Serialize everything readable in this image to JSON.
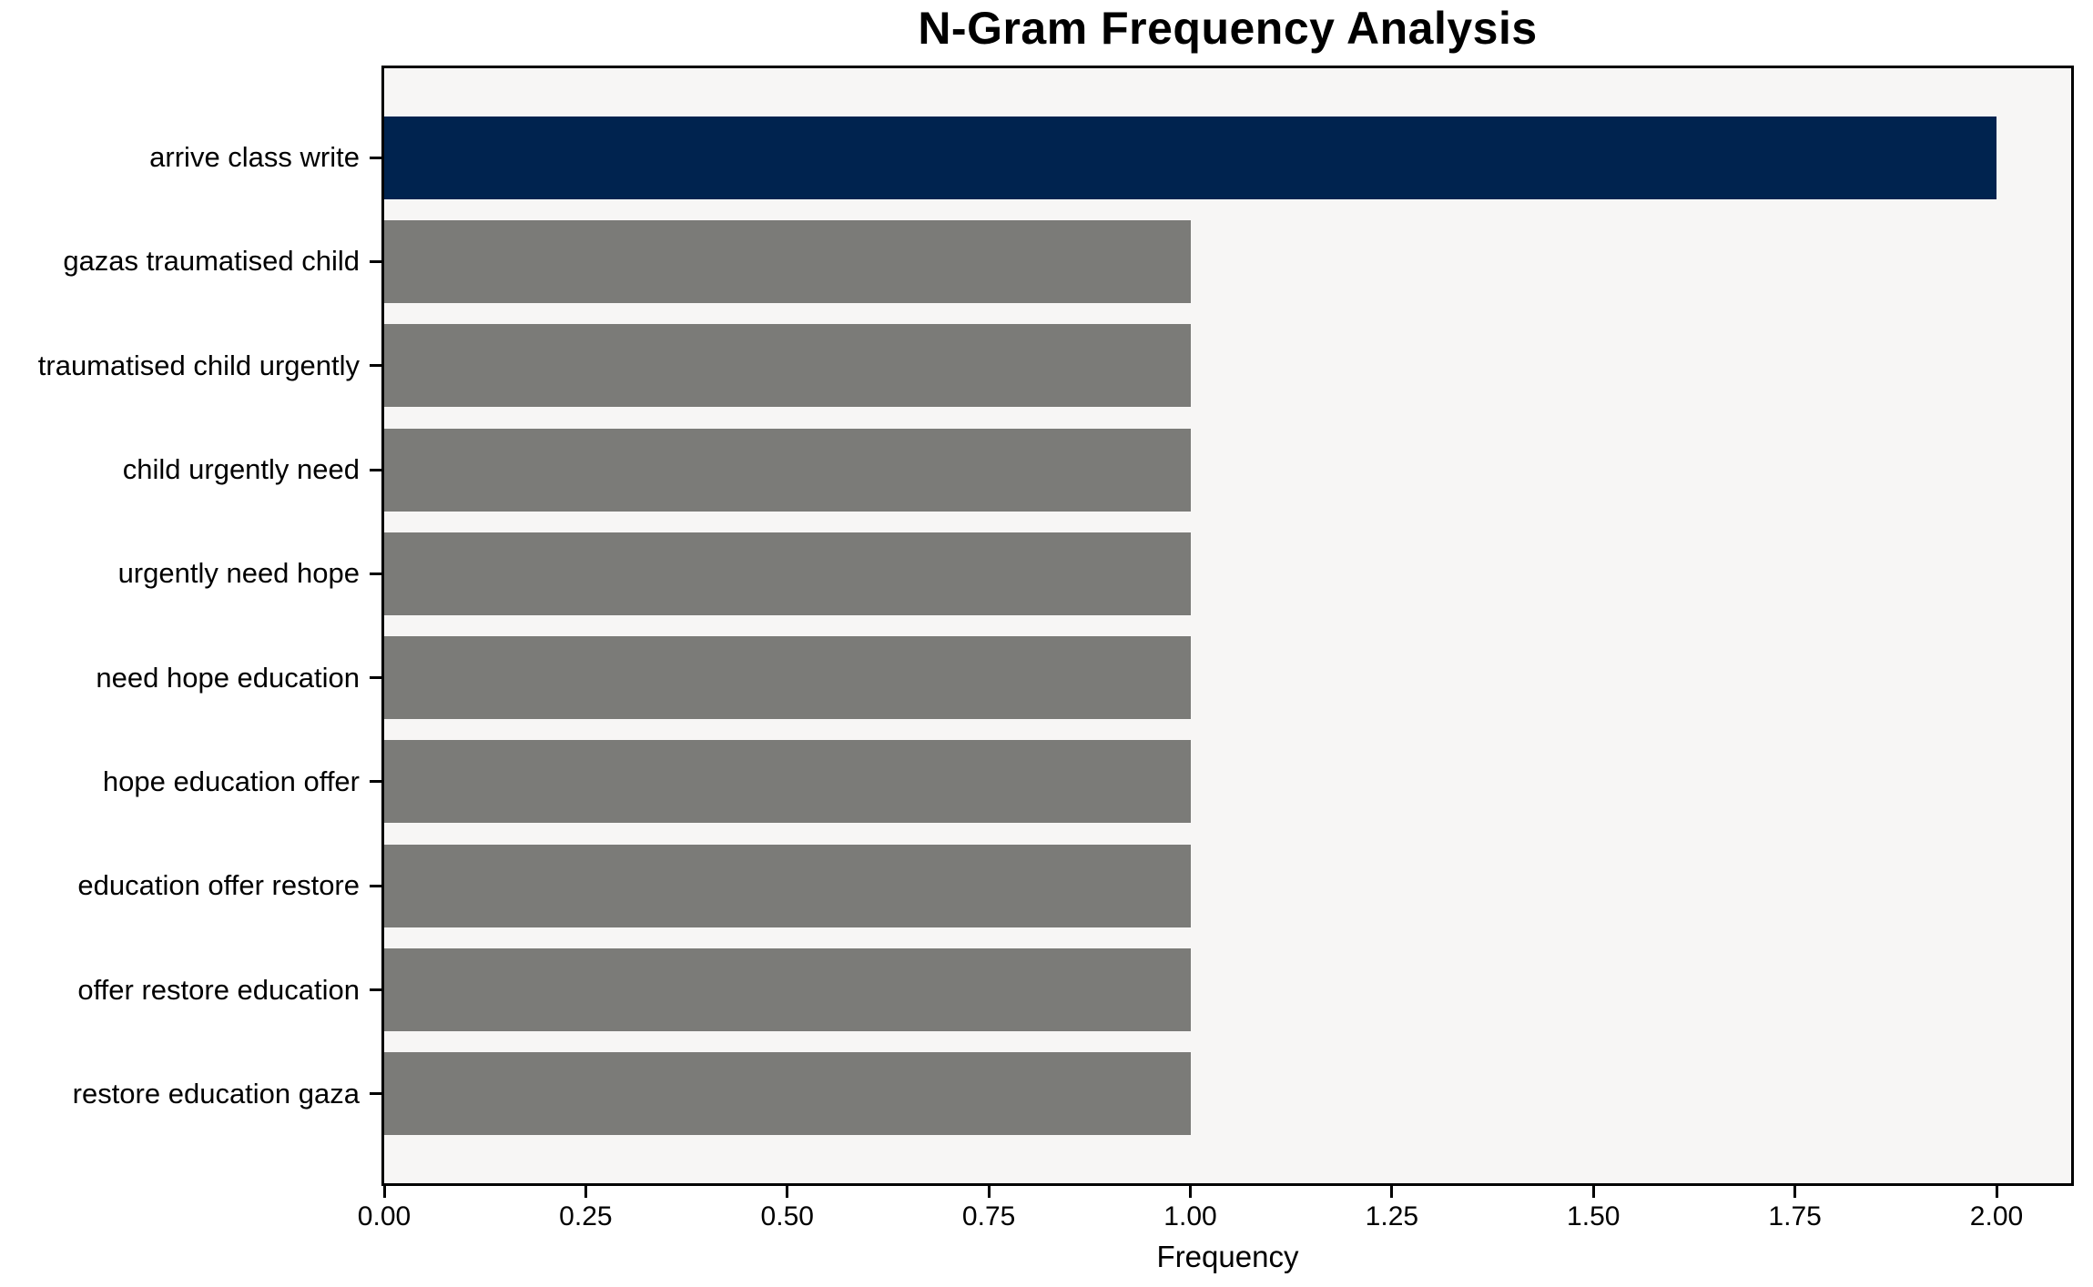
{
  "chart_data": {
    "type": "bar",
    "orientation": "horizontal",
    "title": "N-Gram Frequency Analysis",
    "xlabel": "Frequency",
    "ylabel": "",
    "categories": [
      "arrive class write",
      "gazas traumatised child",
      "traumatised child urgently",
      "child urgently need",
      "urgently need hope",
      "need hope education",
      "hope education offer",
      "education offer restore",
      "offer restore education",
      "restore education gaza"
    ],
    "values": [
      2,
      1,
      1,
      1,
      1,
      1,
      1,
      1,
      1,
      1
    ],
    "bar_colors": [
      "#00234f",
      "#7b7b78",
      "#7b7b78",
      "#7b7b78",
      "#7b7b78",
      "#7b7b78",
      "#7b7b78",
      "#7b7b78",
      "#7b7b78",
      "#7b7b78"
    ],
    "highlight_color": "#00234f",
    "default_bar_color": "#7b7b78",
    "plot_background": "#f7f6f5",
    "spine_color": "#000000",
    "x_ticks": [
      "0.00",
      "0.25",
      "0.50",
      "0.75",
      "1.00",
      "1.25",
      "1.50",
      "1.75",
      "2.00"
    ],
    "x_tick_values": [
      0,
      0.25,
      0.5,
      0.75,
      1.0,
      1.25,
      1.5,
      1.75,
      2.0
    ],
    "xlim": [
      0,
      2.09
    ],
    "grid": false,
    "legend": null
  }
}
